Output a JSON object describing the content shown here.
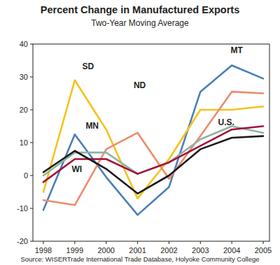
{
  "chart_data": {
    "type": "line",
    "title": "Percent Change in Manufactured Exports",
    "subtitle": "Two-Year Moving Average",
    "source": "Source: WISERTrade International Trade Database, Holyoke Community College",
    "categories": [
      "1998",
      "1999",
      "2000",
      "2001",
      "2002",
      "2003",
      "2004",
      "2005"
    ],
    "series": [
      {
        "name": "MT",
        "color": "#4a7fb5",
        "values": [
          -10.5,
          12.5,
          -0.5,
          -12,
          -3.5,
          25.5,
          33.5,
          29.5
        ]
      },
      {
        "name": "SD",
        "color": "#f6c21c",
        "values": [
          -5,
          29,
          14,
          -7,
          5,
          20,
          20,
          21
        ]
      },
      {
        "name": "ND",
        "color": "#ee8b6c",
        "values": [
          -7.5,
          -9,
          8,
          13,
          -1,
          12,
          25.5,
          25
        ]
      },
      {
        "name": "MN",
        "color": "#8fb3a1",
        "values": [
          0,
          7,
          7,
          0.5,
          4,
          11,
          15,
          13
        ]
      },
      {
        "name": "WI",
        "color": "#a3113c",
        "values": [
          -2,
          5,
          5,
          0.5,
          4,
          9,
          14,
          15
        ]
      },
      {
        "name": "U.S.",
        "color": "#1a1a1a",
        "values": [
          1,
          7.5,
          2,
          -5.5,
          0,
          8,
          11.5,
          12
        ]
      }
    ],
    "ylim": [
      -20,
      40
    ],
    "yticks": [
      -20,
      -10,
      0,
      10,
      20,
      30,
      40
    ],
    "grid": false
  }
}
